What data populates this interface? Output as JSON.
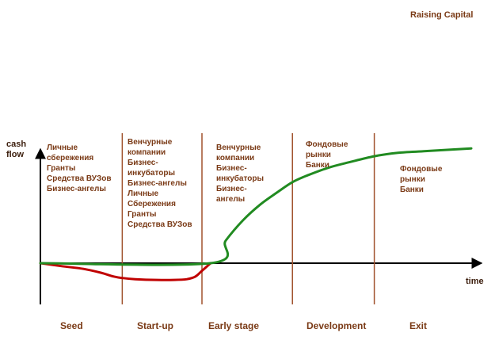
{
  "chart_data": {
    "type": "line",
    "title": "Raising Capital",
    "xlabel": "time",
    "ylabel": "cash flow",
    "x_range": [
      0,
      100
    ],
    "y_range": [
      -100,
      100
    ],
    "grid": false,
    "legend": "none",
    "stage_boundaries": [
      19,
      37.5,
      58.5,
      77.5
    ],
    "series": [
      {
        "name": "cash flow",
        "points": [
          [
            0,
            0
          ],
          [
            5,
            -8
          ],
          [
            10,
            -15
          ],
          [
            14,
            -25
          ],
          [
            17,
            -35
          ],
          [
            19,
            -39
          ],
          [
            22,
            -42
          ],
          [
            27,
            -44
          ],
          [
            31,
            -44
          ],
          [
            34,
            -42
          ],
          [
            36,
            -35
          ],
          [
            37.5,
            -20
          ],
          [
            39.5,
            0
          ],
          [
            43,
            20
          ],
          [
            47,
            38
          ],
          [
            51,
            52
          ],
          [
            55,
            63
          ],
          [
            58.5,
            72
          ],
          [
            62,
            78
          ],
          [
            67,
            85
          ],
          [
            72,
            90
          ],
          [
            77.5,
            95
          ],
          [
            83,
            98
          ],
          [
            89,
            99.5
          ],
          [
            100,
            102
          ]
        ]
      }
    ],
    "stages": [
      "Seed",
      "Start-up",
      "Early stage",
      "Development",
      "Exit"
    ],
    "annotations": [
      {
        "stage": "Seed",
        "lines": [
          "Личные",
          "сбережения",
          "Гранты",
          "Средства ВУЗов",
          "Бизнес-ангелы"
        ]
      },
      {
        "stage": "Start-up",
        "lines": [
          "Венчурные",
          "компании",
          "Бизнес-",
          "инкубаторы",
          "Бизнес-ангелы",
          "Личные",
          "Сбережения",
          "Гранты",
          "Средства ВУЗов"
        ]
      },
      {
        "stage": "Early stage",
        "lines": [
          "Венчурные",
          "компании",
          "Бизнес-",
          "инкубаторы",
          "Бизнес-",
          "ангелы"
        ]
      },
      {
        "stage": "Development",
        "lines": [
          "Фондовые",
          "рынки",
          "Банки"
        ]
      },
      {
        "stage": "Exit",
        "lines": [
          "Фондовые",
          "рынки",
          "Банки"
        ]
      }
    ]
  },
  "labels": {
    "title": "Raising Capital",
    "y_axis_line1": "cash",
    "y_axis_line2": "flow",
    "x_axis": "time"
  },
  "colors": {
    "curve_negative": "#c00000",
    "curve_positive": "#218b21",
    "axis": "#000000",
    "divider": "#a0522d",
    "text": "#7a3a16"
  }
}
